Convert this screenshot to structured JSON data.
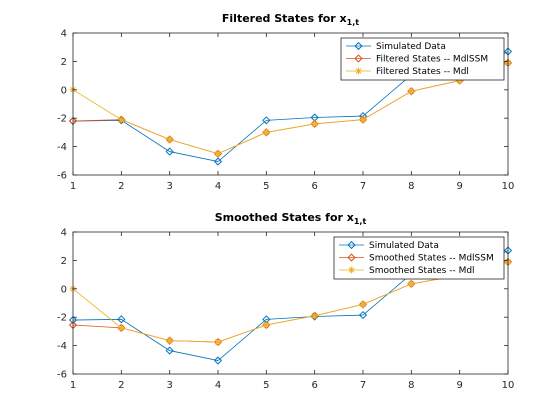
{
  "colors": {
    "simulated": "#0072BD",
    "model_a": "#D95319",
    "model_b": "#EDB120",
    "axis": "#262626"
  },
  "chart_data": [
    {
      "type": "line",
      "title_main": "Filtered States for x",
      "title_sub": "1,t",
      "x": [
        1,
        2,
        3,
        4,
        5,
        6,
        7,
        8,
        9,
        10
      ],
      "xlim": [
        1,
        10
      ],
      "ylim": [
        -6,
        4
      ],
      "xticks": [
        1,
        2,
        3,
        4,
        5,
        6,
        7,
        8,
        9,
        10
      ],
      "yticks": [
        -6,
        -4,
        -2,
        0,
        2,
        4
      ],
      "grid": false,
      "legend_position": "top-right",
      "series": [
        {
          "name": "Simulated Data",
          "marker": "diamond",
          "color_key": "simulated",
          "values": [
            -2.2,
            -2.15,
            -4.35,
            -5.05,
            -2.15,
            -1.95,
            -1.85,
            1.05,
            1.0,
            2.7
          ]
        },
        {
          "name": "Filtered States -- MdlSSM",
          "marker": "diamond",
          "color_key": "model_a",
          "values": [
            -2.2,
            -2.1,
            -3.5,
            -4.5,
            -3.0,
            -2.4,
            -2.1,
            -0.1,
            0.65,
            1.9
          ]
        },
        {
          "name": "Filtered States -- Mdl",
          "marker": "asterisk",
          "color_key": "model_b",
          "values": [
            0.0,
            -2.1,
            -3.5,
            -4.5,
            -3.0,
            -2.4,
            -2.1,
            -0.1,
            0.65,
            1.9
          ]
        }
      ]
    },
    {
      "type": "line",
      "title_main": "Smoothed States for x",
      "title_sub": "1,t",
      "x": [
        1,
        2,
        3,
        4,
        5,
        6,
        7,
        8,
        9,
        10
      ],
      "xlim": [
        1,
        10
      ],
      "ylim": [
        -6,
        4
      ],
      "xticks": [
        1,
        2,
        3,
        4,
        5,
        6,
        7,
        8,
        9,
        10
      ],
      "yticks": [
        -6,
        -4,
        -2,
        0,
        2,
        4
      ],
      "grid": false,
      "legend_position": "top-right",
      "series": [
        {
          "name": "Simulated Data",
          "marker": "diamond",
          "color_key": "simulated",
          "values": [
            -2.2,
            -2.15,
            -4.35,
            -5.05,
            -2.15,
            -1.95,
            -1.85,
            1.05,
            1.0,
            2.7
          ]
        },
        {
          "name": "Smoothed States -- MdlSSM",
          "marker": "diamond",
          "color_key": "model_a",
          "values": [
            -2.55,
            -2.75,
            -3.65,
            -3.75,
            -2.55,
            -1.9,
            -1.1,
            0.35,
            0.95,
            1.9
          ]
        },
        {
          "name": "Smoothed States -- Mdl",
          "marker": "asterisk",
          "color_key": "model_b",
          "values": [
            0.0,
            -2.75,
            -3.65,
            -3.75,
            -2.55,
            -1.9,
            -1.1,
            0.35,
            0.95,
            1.9
          ]
        }
      ]
    }
  ]
}
